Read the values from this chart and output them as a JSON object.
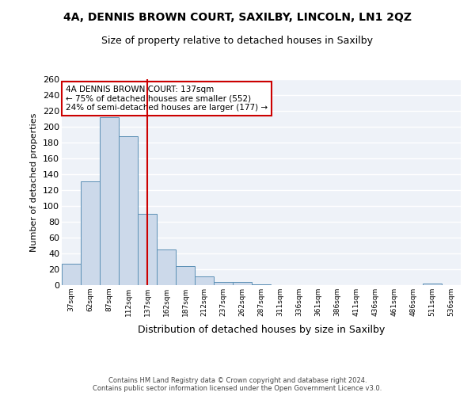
{
  "title1": "4A, DENNIS BROWN COURT, SAXILBY, LINCOLN, LN1 2QZ",
  "title2": "Size of property relative to detached houses in Saxilby",
  "xlabel": "Distribution of detached houses by size in Saxilby",
  "ylabel": "Number of detached properties",
  "categories": [
    "37sqm",
    "62sqm",
    "87sqm",
    "112sqm",
    "137sqm",
    "162sqm",
    "187sqm",
    "212sqm",
    "237sqm",
    "262sqm",
    "287sqm",
    "311sqm",
    "336sqm",
    "361sqm",
    "386sqm",
    "411sqm",
    "436sqm",
    "461sqm",
    "486sqm",
    "511sqm",
    "536sqm"
  ],
  "bar_heights": [
    27,
    131,
    212,
    188,
    90,
    45,
    24,
    11,
    4,
    4,
    1,
    0,
    0,
    0,
    0,
    0,
    0,
    0,
    0,
    2,
    0
  ],
  "bar_color": "#ccd9ea",
  "bar_edge_color": "#5a8fb5",
  "vline_x": 4,
  "vline_color": "#cc0000",
  "annotation_text": "4A DENNIS BROWN COURT: 137sqm\n← 75% of detached houses are smaller (552)\n24% of semi-detached houses are larger (177) →",
  "annotation_box_color": "#ffffff",
  "annotation_box_edge_color": "#cc0000",
  "ylim": [
    0,
    260
  ],
  "yticks": [
    0,
    20,
    40,
    60,
    80,
    100,
    120,
    140,
    160,
    180,
    200,
    220,
    240,
    260
  ],
  "bg_color": "#eef2f8",
  "grid_color": "#ffffff",
  "footer": "Contains HM Land Registry data © Crown copyright and database right 2024.\nContains public sector information licensed under the Open Government Licence v3.0."
}
